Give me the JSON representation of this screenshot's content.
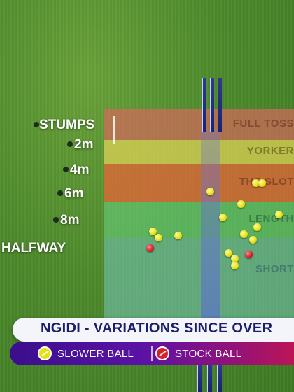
{
  "distance_markers": [
    "STUMPS",
    "2m",
    "4m",
    "6m",
    "8m",
    "HALFWAY"
  ],
  "zones": [
    "FULL TOSS",
    "YORKER",
    "THE SLOT",
    "LENGTH",
    "SHORT"
  ],
  "title": "NGIDI - VARIATIONS SINCE OVER",
  "legend": [
    {
      "label": "SLOWER BALL",
      "icon": "cricket-ball-icon",
      "color": "#e8df14"
    },
    {
      "label": "STOCK BALL",
      "icon": "cricket-ball-icon",
      "color": "#d81f2b"
    }
  ],
  "colors": {
    "full_toss": "#d66a5c",
    "yorker": "#d9ce54",
    "slot": "#e26638",
    "length": "#65cc79",
    "short": "#76c6bc",
    "title_text": "#1d1e6b",
    "slower_ball": "#e8df14",
    "stock_ball": "#d81f2b"
  }
}
